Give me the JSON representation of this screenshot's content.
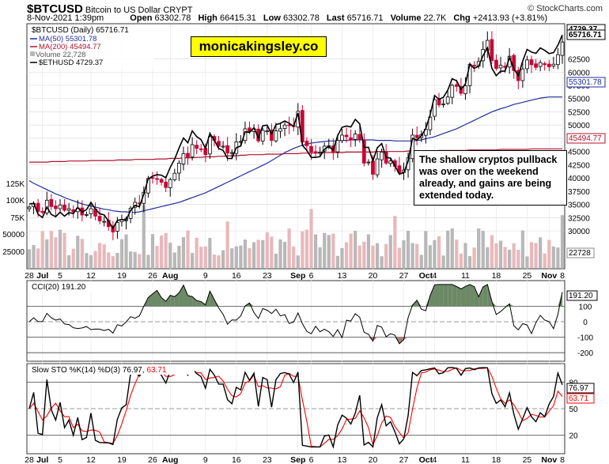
{
  "header": {
    "symbol": "$BTCUSD",
    "name": "Bitcoin to US Dollar",
    "exchange": "CRYPT",
    "date": "8-Nov-2021 1:39pm",
    "open_label": "Open",
    "open": "63302.78",
    "high_label": "High",
    "high": "66415.31",
    "low_label": "Low",
    "low": "63302.78",
    "last_label": "Last",
    "last": "65716.71",
    "volume_label": "Volume",
    "volume": "22.7K",
    "chg_label": "Chg",
    "chg": "+2413.93 (+3.81%)",
    "copyright": "© StockCharts.com"
  },
  "legend": {
    "main": "$BTCUSD (Daily) 65716.71",
    "ma50": "MA(50) 55301.78",
    "ma200": "MA(200) 45494.77",
    "volume": "Volume 22,728",
    "ethusd": "$ETHUSD 4729.37"
  },
  "brand": "monicakingsley.co",
  "annotation": "The shallow cryptos pullback was over on the weekend already, and gains are being extended today.",
  "colors": {
    "up": "#000000",
    "down": "#cc0033",
    "ma50": "#1f2f9c",
    "ma200": "#b0122b",
    "eth": "#000000",
    "cci_pos": "#5c7c55",
    "cci_neg": "#a07070",
    "sto_k": "#000000",
    "sto_d": "#ff0000",
    "vol_up": "#b8b8b8",
    "vol_down": "#e8b8bc"
  },
  "panels": {
    "cci_label": "CCI(20) 191.20",
    "sto_label_prefix": "Slow STO %K(14) %D(3) 76.97,",
    "sto_label_d": "63.71"
  },
  "chart_data": [
    {
      "type": "candlestick",
      "title": "$BTCUSD Bitcoin to US Dollar (Daily)",
      "ylim": [
        23000,
        69000
      ],
      "yticks_price": [
        30000,
        32500,
        35000,
        37500,
        40000,
        42500,
        45000,
        47500,
        50000,
        52500,
        55000,
        57500,
        60000,
        62500
      ],
      "yticks_volume": [
        "125K",
        "100K",
        "75K",
        "50000",
        "25000"
      ],
      "price_tags": {
        "eth": "4729.37",
        "last": "65716.71",
        "ma50": "55301.78",
        "ma200": "45494.77",
        "volume": "22728"
      },
      "x_labels": [
        "28",
        "Jul",
        "5",
        "12",
        "19",
        "26",
        "Aug",
        "9",
        "16",
        "23",
        "Sep",
        "6",
        "13",
        "20",
        "27",
        "Oct",
        "4",
        "11",
        "18",
        "25",
        "Nov",
        "8"
      ],
      "series": [
        {
          "name": "BTCUSD close",
          "values": [
            34500,
            35200,
            33700,
            33500,
            35800,
            34600,
            34200,
            34900,
            33900,
            34200,
            33600,
            34300,
            33000,
            33100,
            34200,
            32800,
            31900,
            31800,
            30800,
            29800,
            31600,
            32100,
            32300,
            34300,
            35400,
            35100,
            37300,
            39900,
            40000,
            39800,
            39200,
            38200,
            39700,
            40900,
            42800,
            44600,
            43800,
            46300,
            45600,
            45500,
            44400,
            47800,
            47100,
            46000,
            46000,
            44700,
            44800,
            46800,
            46900,
            49300,
            48800,
            49300,
            47000,
            49000,
            48900,
            47100,
            48900,
            49300,
            50000,
            49900,
            49700,
            52600,
            46800,
            46100,
            44900,
            44900,
            44900,
            46000,
            46100,
            44900,
            47100,
            48100,
            47800,
            47200,
            48300,
            47300,
            42800,
            43000,
            40700,
            43600,
            44900,
            42800,
            43200,
            42200,
            41000,
            41500,
            43800,
            48100,
            47600,
            48200,
            49200,
            51500,
            54800,
            53800,
            54000,
            55300,
            57500,
            57300,
            56000,
            57400,
            61500,
            61200,
            62000,
            64300,
            66000,
            62200,
            60700,
            61300,
            60900,
            63000,
            60300,
            58400,
            60600,
            62300,
            61400,
            60900,
            61800,
            61400,
            61000,
            61500,
            63300,
            65700
          ]
        },
        {
          "name": "MA(50)",
          "values": [
            39500,
            39000,
            38600,
            38200,
            37800,
            37400,
            37000,
            36700,
            36300,
            36000,
            35700,
            35400,
            35100,
            34900,
            34700,
            34500,
            34300,
            34100,
            34000,
            33800,
            33700,
            33600,
            33600,
            33500,
            33500,
            33600,
            33800,
            34000,
            34200,
            34400,
            34600,
            34800,
            35000,
            35200,
            35400,
            35700,
            36000,
            36300,
            36600,
            36900,
            37200,
            37600,
            38000,
            38400,
            38800,
            39200,
            39600,
            40000,
            40400,
            40800,
            41200,
            41600,
            42000,
            42400,
            42800,
            43300,
            43800,
            44300,
            44800,
            45200,
            45600,
            45900,
            46200,
            46400,
            46600,
            46700,
            46800,
            46900,
            47000,
            47000,
            47000,
            47100,
            47100,
            47200,
            47200,
            47200,
            47200,
            47200,
            47200,
            47100,
            47100,
            47100,
            47100,
            47000,
            47000,
            47000,
            47000,
            47000,
            47100,
            47200,
            47400,
            47600,
            47800,
            48100,
            48400,
            48700,
            49000,
            49300,
            49700,
            50100,
            50500,
            50900,
            51300,
            51700,
            52100,
            52500,
            52800,
            53100,
            53300,
            53600,
            53900,
            54100,
            54300,
            54500,
            54700,
            54900,
            55100,
            55200,
            55300,
            55300,
            55300,
            55300
          ]
        },
        {
          "name": "MA(200)",
          "values": [
            43000,
            43000,
            43000,
            43000,
            43000,
            43100,
            43100,
            43100,
            43100,
            43200,
            43200,
            43200,
            43200,
            43200,
            43300,
            43300,
            43300,
            43300,
            43300,
            43300,
            43400,
            43400,
            43400,
            43400,
            43500,
            43500,
            43500,
            43500,
            43500,
            43600,
            43600,
            43600,
            43700,
            43700,
            43700,
            43800,
            43800,
            43800,
            43900,
            43900,
            44000,
            44000,
            44000,
            44100,
            44100,
            44200,
            44200,
            44200,
            44300,
            44300,
            44400,
            44400,
            44400,
            44400,
            44500,
            44500,
            44500,
            44500,
            44600,
            44600,
            44600,
            44600,
            44700,
            44700,
            44700,
            44700,
            44700,
            44800,
            44800,
            44800,
            44800,
            44800,
            44900,
            44900,
            44900,
            44900,
            44900,
            44900,
            44900,
            45000,
            45000,
            45000,
            45000,
            45000,
            45000,
            45000,
            45100,
            45100,
            45100,
            45100,
            45100,
            45100,
            45100,
            45200,
            45200,
            45200,
            45200,
            45200,
            45200,
            45200,
            45300,
            45300,
            45300,
            45300,
            45300,
            45300,
            45300,
            45400,
            45400,
            45400,
            45400,
            45400,
            45400,
            45400,
            45500,
            45500,
            45500,
            45500,
            45500,
            45500,
            45500,
            45500
          ]
        }
      ]
    },
    {
      "type": "line",
      "title": "CCI(20)",
      "value": 191.2,
      "yticks": [
        100,
        0,
        -100,
        -200
      ],
      "ylim": [
        -250,
        260
      ]
    },
    {
      "type": "line",
      "title": "Slow STO %K(14) %D(3)",
      "k": 76.97,
      "d": 63.71,
      "yticks": [
        80,
        50,
        20
      ],
      "ylim": [
        0,
        100
      ]
    }
  ]
}
